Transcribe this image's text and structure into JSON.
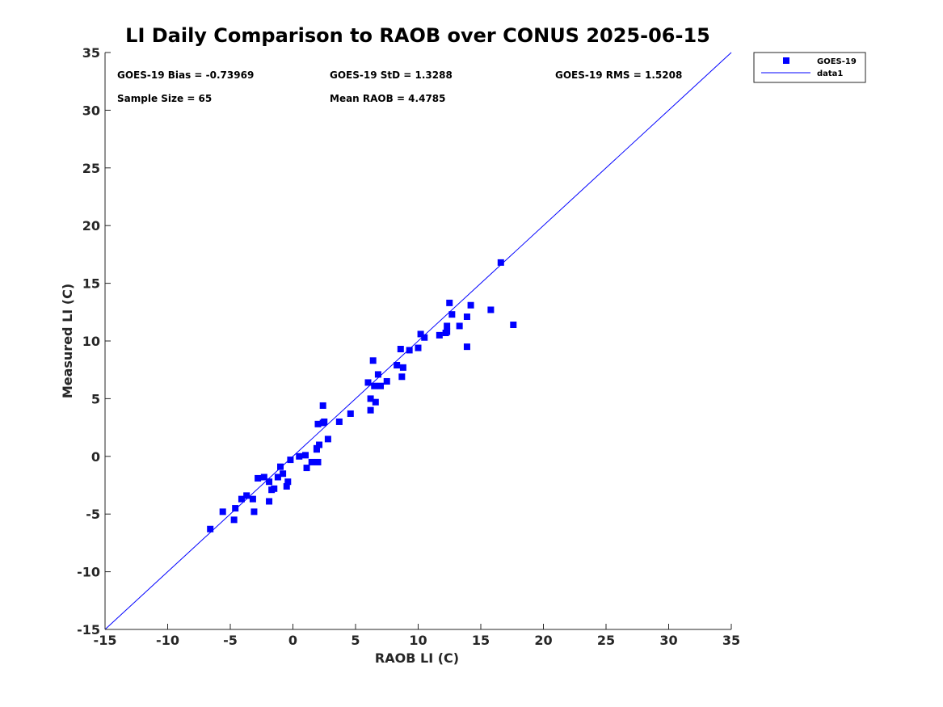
{
  "chart_data": {
    "type": "scatter",
    "title": "LI Daily Comparison to RAOB over CONUS 2025-06-15",
    "xlabel": "RAOB LI (C)",
    "ylabel": "Measured LI (C)",
    "xlim": [
      -15,
      35
    ],
    "ylim": [
      -15,
      35
    ],
    "xticks": [
      -15,
      -10,
      -5,
      0,
      5,
      10,
      15,
      20,
      25,
      30,
      35
    ],
    "yticks": [
      -15,
      -10,
      -5,
      0,
      5,
      10,
      15,
      20,
      25,
      30,
      35
    ],
    "grid": false,
    "legend_position": "outside top-right",
    "stats": {
      "bias": "GOES-19 Bias = -0.73969",
      "std": "GOES-19 StD = 1.3288",
      "rms": "GOES-19 RMS = 1.5208",
      "sample_size": "Sample Size = 65",
      "mean_raob": "Mean RAOB = 4.4785"
    },
    "series": [
      {
        "name": "GOES-19",
        "kind": "markers",
        "marker": "square",
        "color": "#0000ff",
        "points": [
          [
            -6.6,
            -6.3
          ],
          [
            -5.6,
            -4.8
          ],
          [
            -4.6,
            -4.5
          ],
          [
            -4.7,
            -5.5
          ],
          [
            -4.1,
            -3.7
          ],
          [
            -3.7,
            -3.4
          ],
          [
            -3.2,
            -3.7
          ],
          [
            -3.1,
            -4.8
          ],
          [
            -2.8,
            -1.9
          ],
          [
            -2.3,
            -1.8
          ],
          [
            -1.9,
            -2.2
          ],
          [
            -1.9,
            -3.9
          ],
          [
            -1.7,
            -2.9
          ],
          [
            -1.5,
            -2.8
          ],
          [
            -1.2,
            -1.8
          ],
          [
            -1.0,
            -0.9
          ],
          [
            -0.8,
            -1.5
          ],
          [
            -0.5,
            -2.6
          ],
          [
            -0.4,
            -2.2
          ],
          [
            -0.2,
            -0.3
          ],
          [
            0.5,
            0.0
          ],
          [
            1.0,
            0.1
          ],
          [
            1.1,
            -1.0
          ],
          [
            1.5,
            -0.5
          ],
          [
            1.9,
            0.6
          ],
          [
            1.9,
            0.7
          ],
          [
            2.0,
            2.8
          ],
          [
            2.1,
            1.0
          ],
          [
            2.0,
            -0.5
          ],
          [
            2.4,
            2.9
          ],
          [
            2.5,
            3.0
          ],
          [
            2.4,
            4.4
          ],
          [
            2.8,
            1.5
          ],
          [
            3.7,
            3.0
          ],
          [
            4.6,
            3.7
          ],
          [
            6.0,
            6.4
          ],
          [
            6.2,
            5.0
          ],
          [
            6.2,
            4.0
          ],
          [
            6.4,
            8.3
          ],
          [
            6.5,
            6.1
          ],
          [
            6.6,
            4.7
          ],
          [
            6.8,
            7.1
          ],
          [
            7.0,
            6.1
          ],
          [
            7.5,
            6.5
          ],
          [
            8.3,
            7.9
          ],
          [
            8.6,
            9.3
          ],
          [
            8.7,
            6.9
          ],
          [
            8.8,
            7.7
          ],
          [
            9.3,
            9.2
          ],
          [
            10.0,
            9.4
          ],
          [
            10.2,
            10.6
          ],
          [
            10.5,
            10.3
          ],
          [
            11.7,
            10.5
          ],
          [
            12.2,
            10.7
          ],
          [
            12.3,
            11.3
          ],
          [
            12.3,
            10.8
          ],
          [
            12.5,
            13.3
          ],
          [
            12.7,
            12.3
          ],
          [
            13.3,
            11.3
          ],
          [
            13.9,
            12.1
          ],
          [
            14.2,
            13.1
          ],
          [
            13.9,
            9.5
          ],
          [
            15.8,
            12.7
          ],
          [
            16.6,
            16.8
          ],
          [
            17.6,
            11.4
          ]
        ]
      },
      {
        "name": "data1",
        "kind": "line",
        "color": "#0000ff",
        "x": [
          -15,
          35
        ],
        "y": [
          -15,
          35
        ]
      }
    ]
  }
}
